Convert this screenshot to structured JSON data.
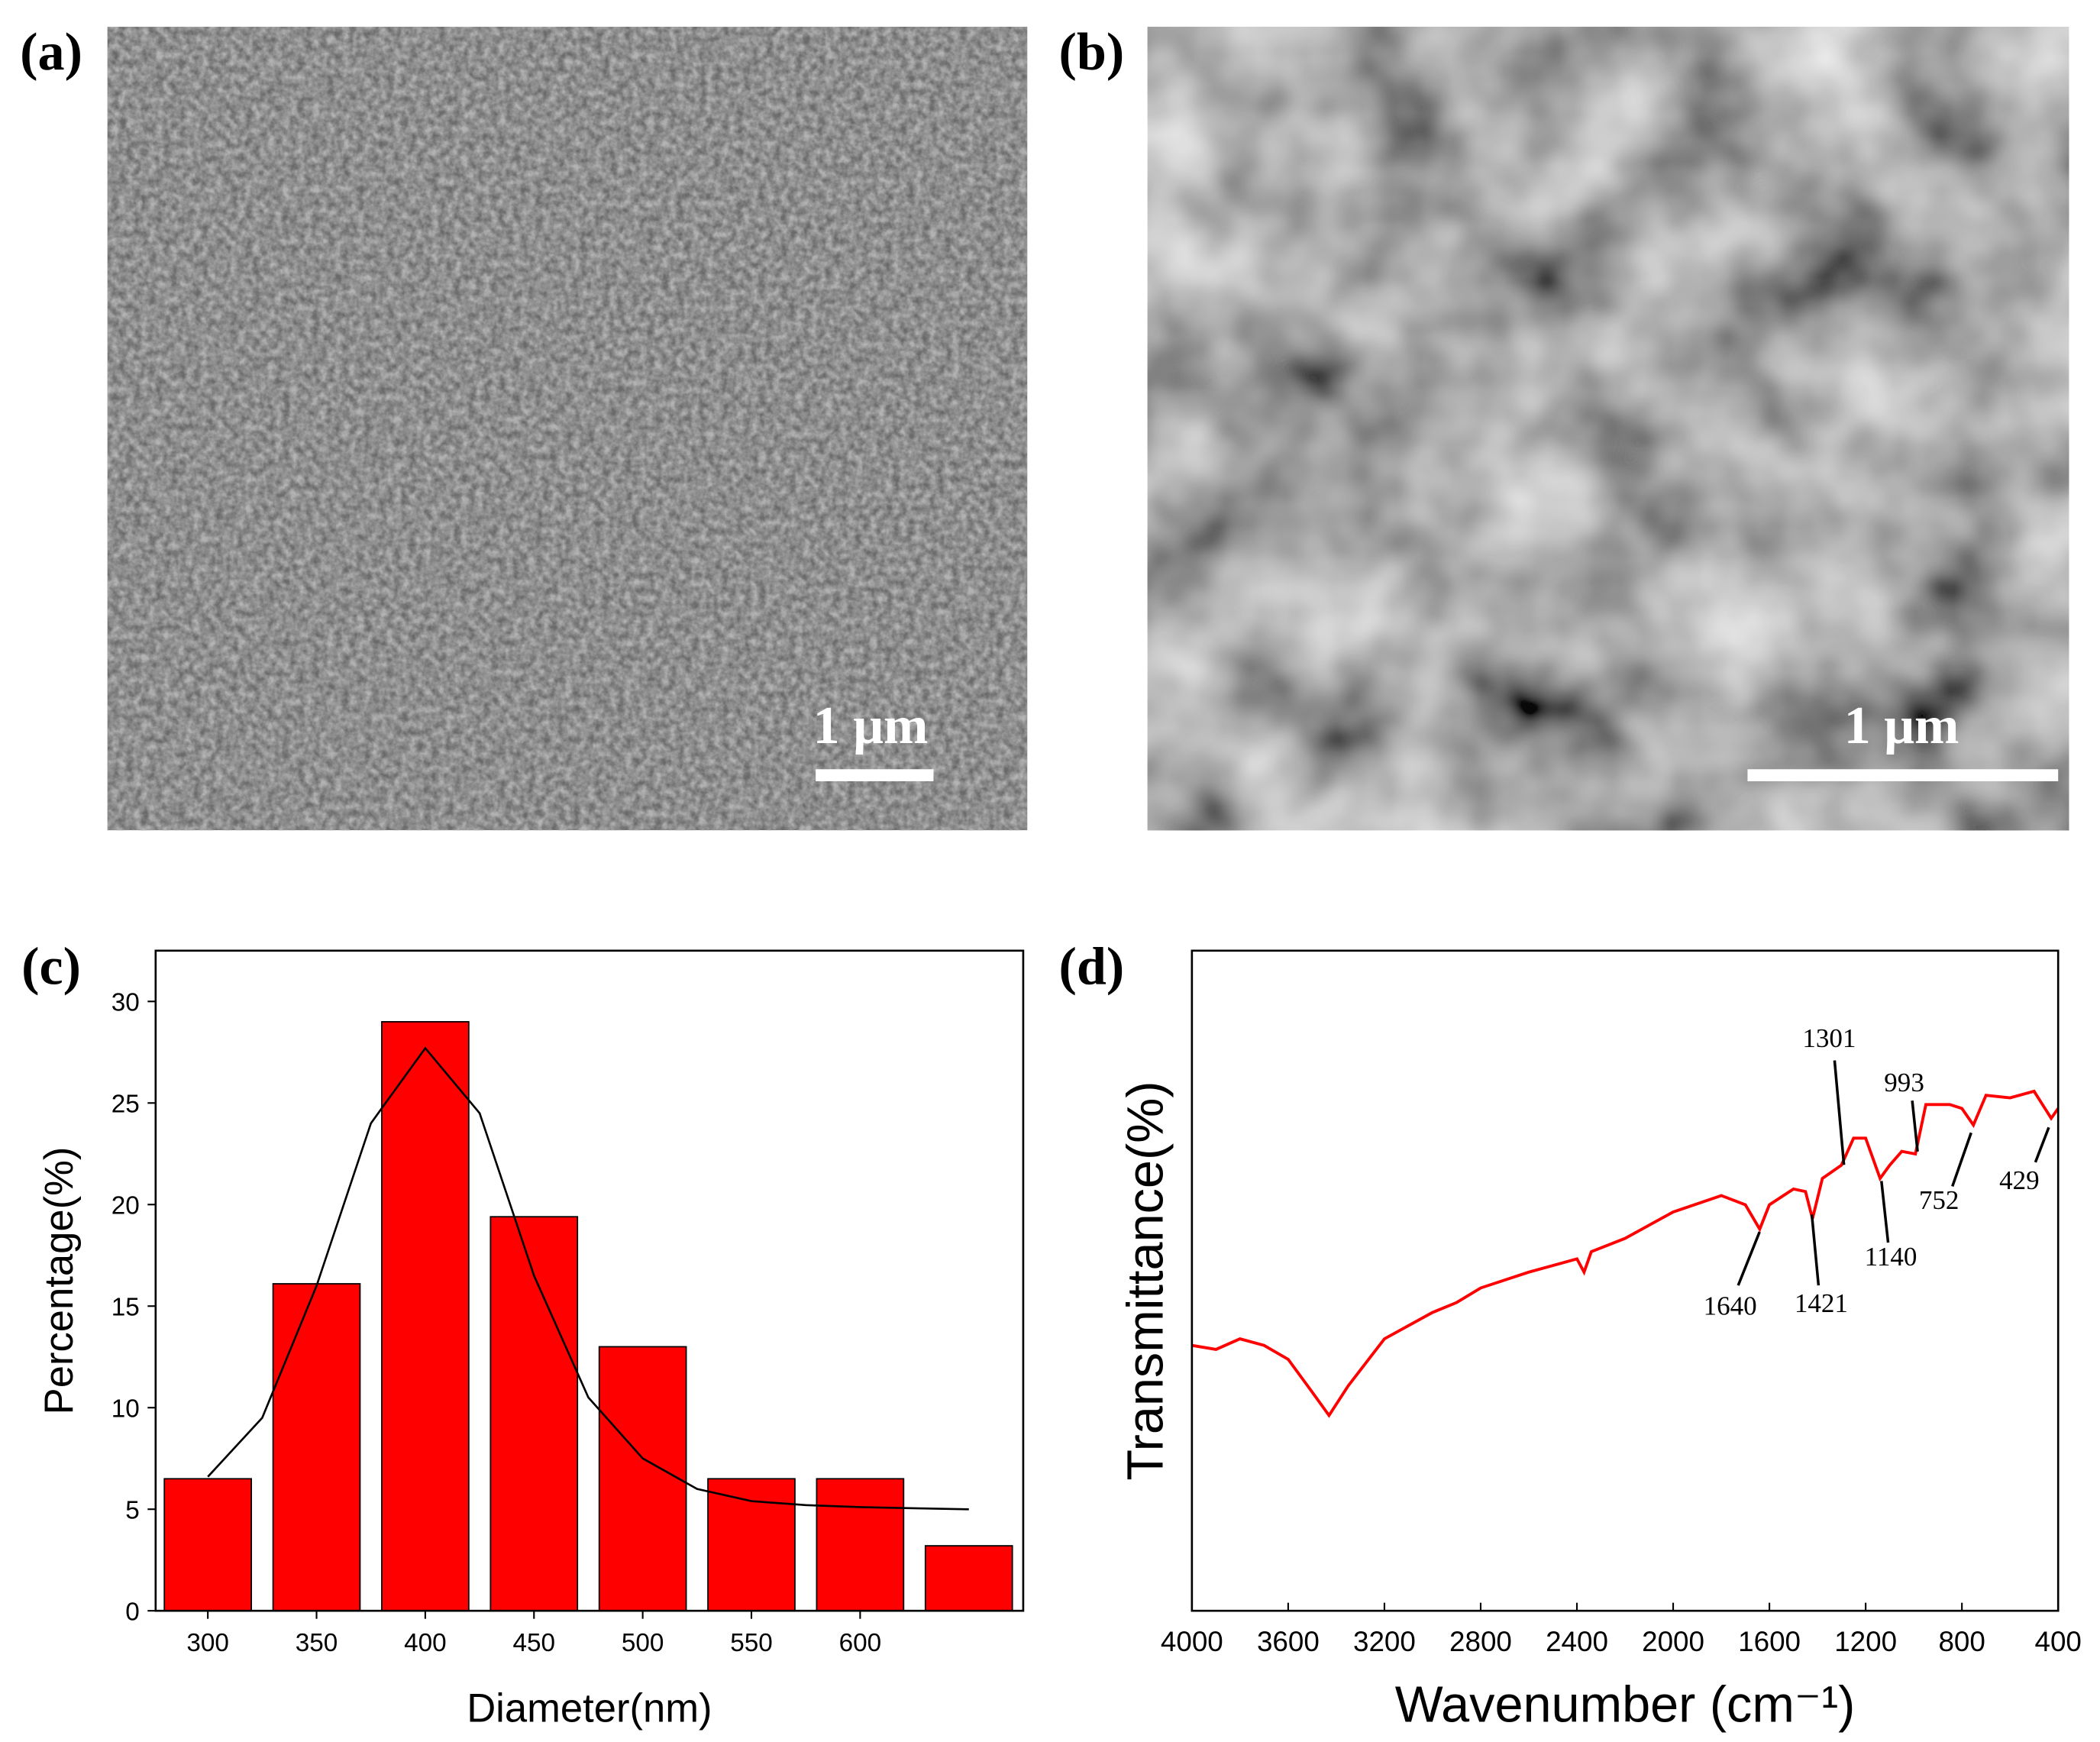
{
  "images": [
    {
      "label": "(a)",
      "scale_bar": "1 μm"
    },
    {
      "label": "(b)",
      "scale_bar": "1 μm"
    }
  ],
  "chart_data": [
    {
      "type": "bar",
      "label": "(c)",
      "xlabel": "Diameter(nm)",
      "ylabel": "Percentage(%)",
      "x": [
        300,
        350,
        400,
        450,
        500,
        550,
        600,
        650
      ],
      "values": [
        6.5,
        16.1,
        29,
        19.4,
        13,
        6.5,
        6.5,
        3.2
      ],
      "color": "#ff0000",
      "fit_line": {
        "x": [
          300,
          325,
          350,
          375,
          400,
          425,
          450,
          475,
          500,
          525,
          550,
          575,
          600,
          625,
          650
        ],
        "values": [
          6.6,
          9.5,
          16,
          24,
          27.7,
          24.5,
          16.5,
          10.5,
          7.5,
          6,
          5.4,
          5.2,
          5.1,
          5.05,
          5
        ],
        "color": "#000000"
      },
      "xlim": [
        276,
        675
      ],
      "ylim": [
        0,
        32.5
      ],
      "xticks": [
        300,
        350,
        400,
        450,
        500,
        550,
        600
      ],
      "yticks": [
        0,
        5,
        10,
        15,
        20,
        25,
        30
      ]
    },
    {
      "type": "line",
      "label": "(d)",
      "xlabel": "Wavenumber (cm⁻¹)",
      "ylabel": "Transmittance(%)",
      "x": [
        4000,
        3900,
        3800,
        3700,
        3600,
        3500,
        3430,
        3350,
        3200,
        3000,
        2900,
        2800,
        2600,
        2400,
        2370,
        2340,
        2200,
        2000,
        1800,
        1700,
        1640,
        1600,
        1500,
        1450,
        1421,
        1380,
        1301,
        1250,
        1200,
        1140,
        1100,
        1050,
        993,
        950,
        850,
        800,
        752,
        700,
        600,
        500,
        429,
        400
      ],
      "values": [
        40.2,
        39.6,
        41.2,
        40.2,
        38.1,
        33.1,
        29.6,
        34.1,
        41.2,
        45.2,
        46.7,
        48.9,
        51.3,
        53.3,
        51.3,
        54.4,
        56.4,
        60.4,
        62.9,
        61.5,
        57.8,
        61.5,
        63.9,
        63.5,
        59.4,
        65.5,
        67.5,
        71.6,
        71.6,
        65.5,
        67.5,
        69.6,
        69.2,
        76.7,
        76.7,
        76.1,
        73.6,
        78.1,
        77.7,
        78.7,
        74.6,
        76.1
      ],
      "color": "#ff0000",
      "xlim": [
        4000,
        400
      ],
      "ylim": [
        0,
        100
      ],
      "xticks": [
        4000,
        3600,
        3200,
        2800,
        2400,
        2000,
        1600,
        1200,
        800,
        400
      ],
      "annotations": [
        "1640",
        "1421",
        "1301",
        "1140",
        "993",
        "752",
        "429"
      ]
    }
  ]
}
